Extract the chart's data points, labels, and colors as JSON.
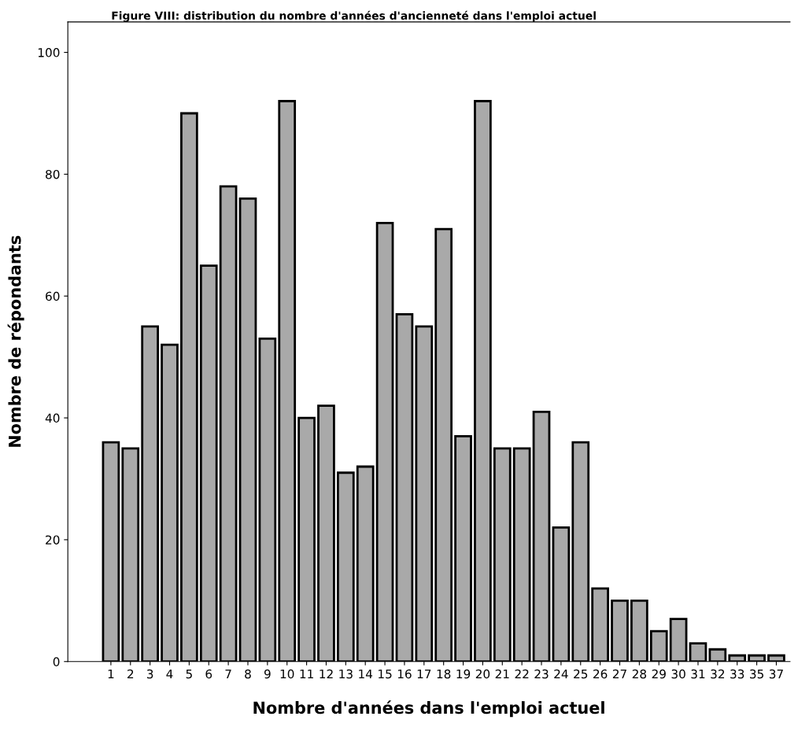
{
  "chart_data": {
    "type": "bar",
    "title": "Figure VIII: distribution du nombre d'années d'ancienneté dans l'emploi actuel",
    "xlabel": "Nombre d'années dans l'emploi actuel",
    "ylabel": "Nombre de répondants",
    "categories": [
      "1",
      "2",
      "3",
      "4",
      "5",
      "6",
      "7",
      "8",
      "9",
      "10",
      "11",
      "12",
      "13",
      "14",
      "15",
      "16",
      "17",
      "18",
      "19",
      "20",
      "21",
      "22",
      "23",
      "24",
      "25",
      "26",
      "27",
      "28",
      "29",
      "30",
      "31",
      "32",
      "33",
      "35",
      "37"
    ],
    "values": [
      36,
      35,
      55,
      52,
      90,
      65,
      78,
      76,
      53,
      92,
      40,
      42,
      31,
      32,
      72,
      57,
      55,
      71,
      37,
      92,
      35,
      35,
      41,
      22,
      36,
      12,
      10,
      10,
      5,
      7,
      3,
      2,
      1,
      1,
      1
    ],
    "color": "#a9a9a9",
    "ylim": [
      0,
      105
    ],
    "yticks": [
      0,
      20,
      40,
      60,
      80,
      100
    ],
    "grid": false,
    "legend": false
  }
}
